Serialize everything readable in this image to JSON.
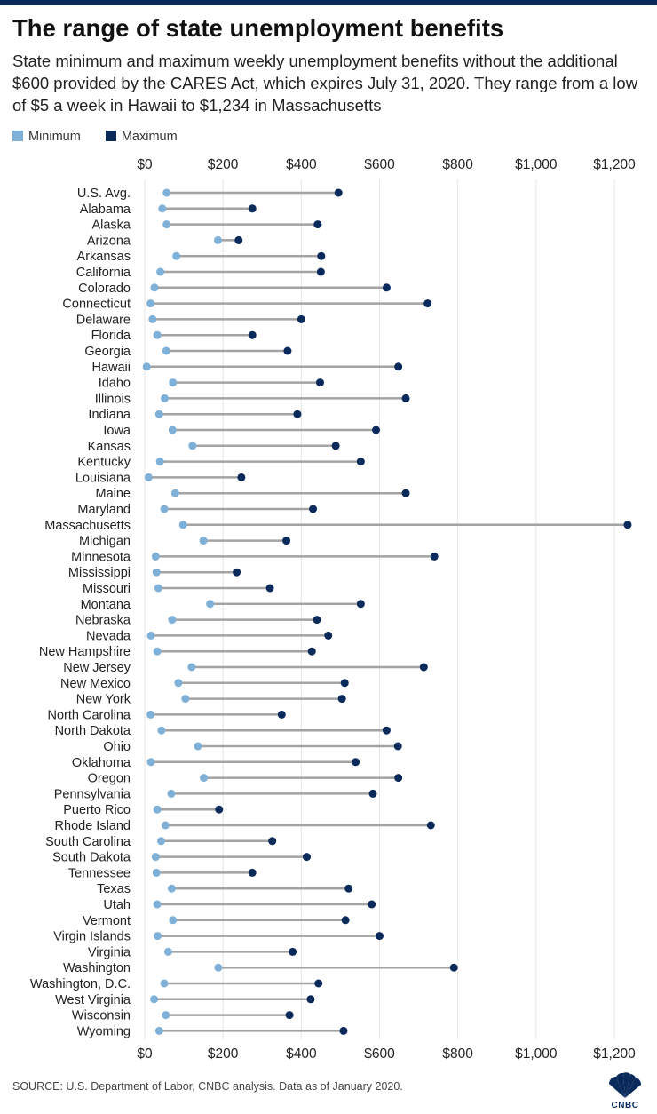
{
  "header": {
    "title": "The range of state unemployment benefits",
    "subtitle": "State minimum and maximum weekly unemployment benefits without the additional $600 provided by the CARES Act, which expires July 31, 2020. They range from a low of $5 a week in Hawaii to $1,234 in Massachusetts"
  },
  "legend": [
    {
      "label": "Minimum",
      "color": "#7fb0d8"
    },
    {
      "label": "Maximum",
      "color": "#0a2a5c"
    }
  ],
  "colors": {
    "minimum": "#7fb0d8",
    "maximum": "#0a2a5c",
    "connector": "#a3a3a3",
    "topbar": "#0a2a5c"
  },
  "chart_data": {
    "type": "dumbbell",
    "title": "The range of state unemployment benefits",
    "xlim": [
      0,
      1300
    ],
    "xticks": [
      0,
      200,
      400,
      600,
      800,
      1000,
      1200
    ],
    "xtick_labels": [
      "$0",
      "$200",
      "$400",
      "$600",
      "$800",
      "$1,000",
      "$1,200"
    ],
    "grid": "vertical",
    "legend_position": "top-left",
    "series": [
      {
        "name": "Minimum"
      },
      {
        "name": "Maximum"
      }
    ],
    "categories": [
      "U.S. Avg.",
      "Alabama",
      "Alaska",
      "Arizona",
      "Arkansas",
      "California",
      "Colorado",
      "Connecticut",
      "Delaware",
      "Florida",
      "Georgia",
      "Hawaii",
      "Idaho",
      "Illinois",
      "Indiana",
      "Iowa",
      "Kansas",
      "Kentucky",
      "Louisiana",
      "Maine",
      "Maryland",
      "Massachusetts",
      "Michigan",
      "Minnesota",
      "Mississippi",
      "Missouri",
      "Montana",
      "Nebraska",
      "Nevada",
      "New Hampshire",
      "New Jersey",
      "New Mexico",
      "New York",
      "North Carolina",
      "North Dakota",
      "Ohio",
      "Oklahoma",
      "Oregon",
      "Pennsylvania",
      "Puerto Rico",
      "Rhode Island",
      "South Carolina",
      "South Dakota",
      "Tennessee",
      "Texas",
      "Utah",
      "Vermont",
      "Virgin Islands",
      "Virginia",
      "Washington",
      "Washington, D.C.",
      "West Virginia",
      "Wisconsin",
      "Wyoming"
    ],
    "min": [
      56,
      45,
      56,
      187,
      81,
      40,
      25,
      15,
      20,
      32,
      55,
      5,
      72,
      51,
      37,
      71,
      122,
      39,
      10,
      78,
      50,
      98,
      150,
      28,
      30,
      35,
      167,
      70,
      16,
      32,
      120,
      86,
      104,
      15,
      43,
      136,
      16,
      151,
      68,
      32,
      53,
      42,
      28,
      30,
      69,
      32,
      72,
      33,
      60,
      188,
      50,
      24,
      54,
      37
    ],
    "max": [
      495,
      275,
      442,
      240,
      451,
      450,
      618,
      723,
      400,
      275,
      365,
      648,
      448,
      667,
      390,
      591,
      488,
      552,
      247,
      667,
      430,
      1234,
      362,
      740,
      235,
      320,
      552,
      440,
      469,
      427,
      713,
      511,
      504,
      350,
      618,
      647,
      539,
      648,
      583,
      190,
      731,
      326,
      414,
      275,
      521,
      580,
      513,
      600,
      378,
      790,
      444,
      424,
      370,
      508
    ]
  },
  "footer": {
    "source": "SOURCE: U.S. Department of Labor, CNBC analysis. Data as of January 2020.",
    "logo_text": "CNBC",
    "logo_icon": "peacock-icon"
  }
}
